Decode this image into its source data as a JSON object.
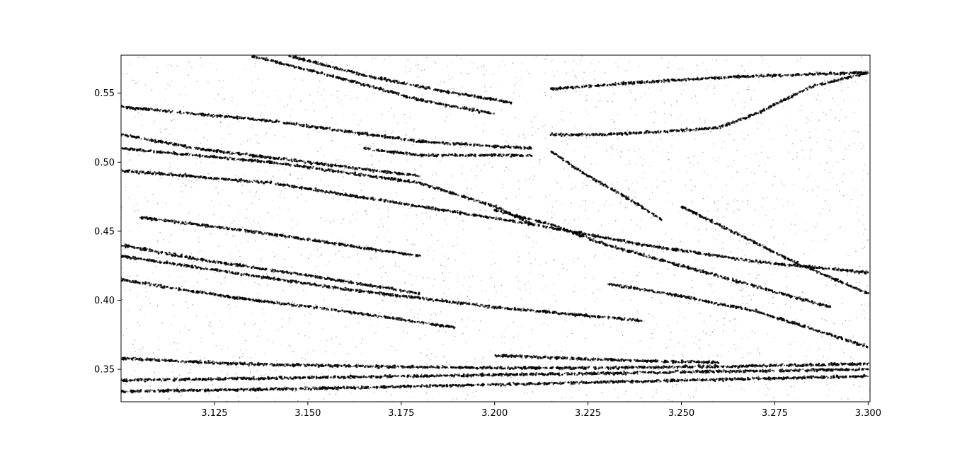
{
  "chart_data": {
    "type": "scatter",
    "title": "",
    "xlabel": "",
    "ylabel": "",
    "xlim": [
      3.1,
      3.3005
    ],
    "ylim": [
      0.3265,
      0.5775
    ],
    "x_ticks": [
      3.125,
      3.15,
      3.175,
      3.2,
      3.225,
      3.25,
      3.275,
      3.3
    ],
    "x_tick_labels": [
      "3.125",
      "3.150",
      "3.175",
      "3.200",
      "3.225",
      "3.250",
      "3.275",
      "3.300"
    ],
    "y_ticks": [
      0.35,
      0.4,
      0.45,
      0.5,
      0.55
    ],
    "y_tick_labels": [
      "0.35",
      "0.40",
      "0.45",
      "0.50",
      "0.55"
    ],
    "grid": false,
    "legend": "none",
    "marker_color": "#000000",
    "background_color": "#ffffff",
    "series": [
      {
        "curves": [
          {
            "x": [
              3.1,
              3.14,
              3.18,
              3.21,
              3.24,
              3.27,
              3.3
            ],
            "y": [
              0.494,
              0.485,
              0.468,
              0.455,
              0.44,
              0.428,
              0.42
            ]
          },
          {
            "x": [
              3.1,
              3.14,
              3.18,
              3.2,
              3.21
            ],
            "y": [
              0.51,
              0.5,
              0.485,
              0.468,
              0.455
            ]
          },
          {
            "x": [
              3.2,
              3.215,
              3.23,
              3.25,
              3.27,
              3.29
            ],
            "y": [
              0.465,
              0.455,
              0.44,
              0.425,
              0.41,
              0.395
            ]
          },
          {
            "x": [
              3.23,
              3.25,
              3.27,
              3.29,
              3.3
            ],
            "y": [
              0.412,
              0.403,
              0.392,
              0.375,
              0.366
            ]
          },
          {
            "x": [
              3.1,
              3.13,
              3.16,
              3.2,
              3.24
            ],
            "y": [
              0.432,
              0.42,
              0.408,
              0.395,
              0.385
            ]
          },
          {
            "x": [
              3.1,
              3.13,
              3.16,
              3.19
            ],
            "y": [
              0.415,
              0.402,
              0.392,
              0.38
            ]
          },
          {
            "x": [
              3.1,
              3.12,
              3.15,
              3.18
            ],
            "y": [
              0.44,
              0.43,
              0.418,
              0.405
            ]
          },
          {
            "x": [
              3.1,
              3.13,
              3.17,
              3.2,
              3.23,
              3.26,
              3.3
            ],
            "y": [
              0.358,
              0.354,
              0.352,
              0.351,
              0.351,
              0.352,
              0.354
            ]
          },
          {
            "x": [
              3.1,
              3.15,
              3.2,
              3.25,
              3.3
            ],
            "y": [
              0.334,
              0.336,
              0.339,
              0.342,
              0.345
            ]
          },
          {
            "x": [
              3.1,
              3.15,
              3.2,
              3.25,
              3.3
            ],
            "y": [
              0.342,
              0.344,
              0.346,
              0.348,
              0.35
            ]
          },
          {
            "x": [
              3.135,
              3.16,
              3.18,
              3.2
            ],
            "y": [
              0.577,
              0.56,
              0.545,
              0.535
            ]
          },
          {
            "x": [
              3.145,
              3.165,
              3.185,
              3.205
            ],
            "y": [
              0.577,
              0.563,
              0.552,
              0.543
            ]
          },
          {
            "x": [
              3.245,
              3.26,
              3.27,
              3.285,
              3.3
            ],
            "y": [
              0.522,
              0.525,
              0.535,
              0.555,
              0.565
            ]
          },
          {
            "x": [
              3.215,
              3.24,
              3.265,
              3.3
            ],
            "y": [
              0.553,
              0.558,
              0.562,
              0.565
            ]
          },
          {
            "x": [
              3.1,
              3.14,
              3.18,
              3.21
            ],
            "y": [
              0.54,
              0.53,
              0.515,
              0.51
            ]
          },
          {
            "x": [
              3.165,
              3.18,
              3.21
            ],
            "y": [
              0.51,
              0.505,
              0.505
            ]
          },
          {
            "x": [
              3.215,
              3.23,
              3.245
            ],
            "y": [
              0.52,
              0.52,
              0.522
            ]
          },
          {
            "x": [
              3.25,
              3.265,
              3.28,
              3.3
            ],
            "y": [
              0.468,
              0.448,
              0.428,
              0.405
            ]
          },
          {
            "x": [
              3.215,
              3.225,
              3.235,
              3.245
            ],
            "y": [
              0.508,
              0.49,
              0.475,
              0.458
            ]
          },
          {
            "x": [
              3.105,
              3.12,
              3.14,
              3.16,
              3.18
            ],
            "y": [
              0.46,
              0.455,
              0.448,
              0.44,
              0.432
            ]
          },
          {
            "x": [
              3.2,
              3.22,
              3.24,
              3.26
            ],
            "y": [
              0.36,
              0.358,
              0.356,
              0.355
            ]
          },
          {
            "x": [
              3.1,
              3.12,
              3.15,
              3.18
            ],
            "y": [
              0.52,
              0.51,
              0.5,
              0.49
            ]
          }
        ]
      }
    ]
  }
}
